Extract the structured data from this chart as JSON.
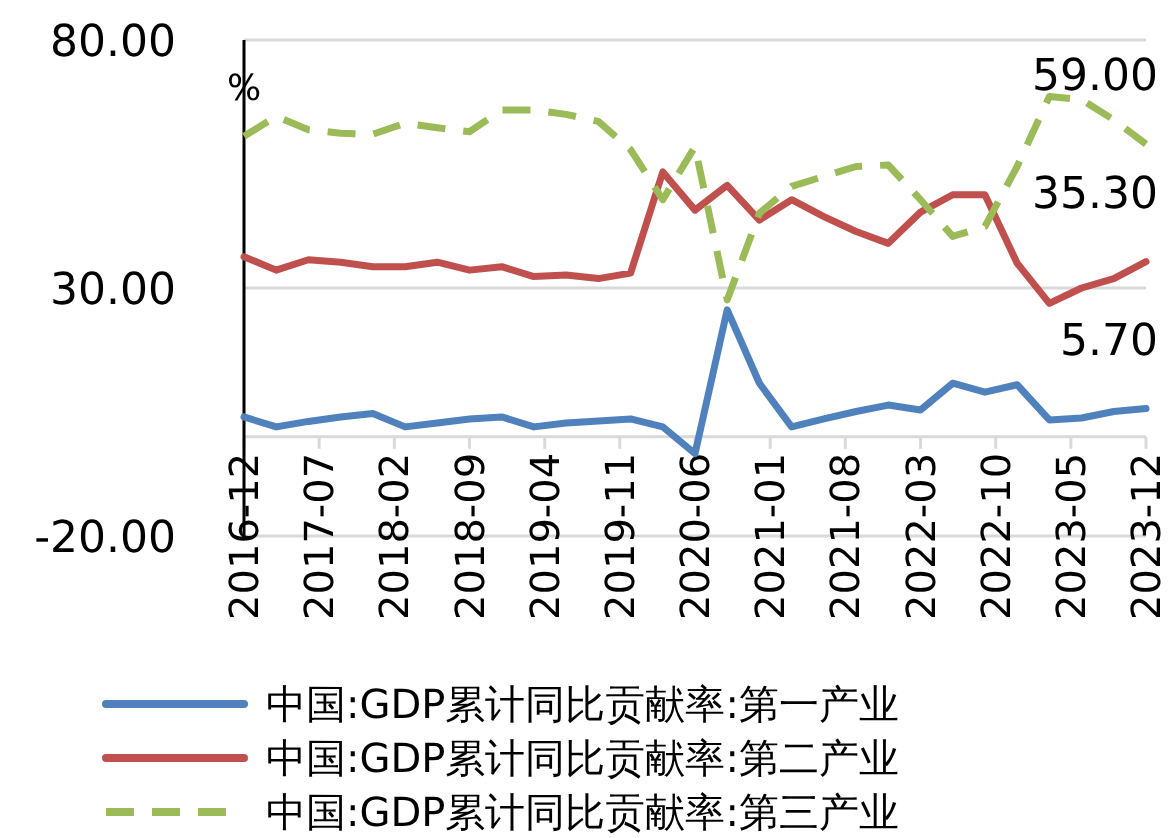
{
  "chart_data": {
    "type": "line",
    "ylabel": "%",
    "x": [
      "2016-12",
      "2017-03",
      "2017-06",
      "2017-09",
      "2017-12",
      "2018-03",
      "2018-06",
      "2018-09",
      "2018-12",
      "2019-03",
      "2019-06",
      "2019-09",
      "2019-12",
      "2020-03",
      "2020-06",
      "2020-09",
      "2020-12",
      "2021-03",
      "2021-06",
      "2021-09",
      "2021-12",
      "2022-03",
      "2022-06",
      "2022-09",
      "2022-12",
      "2023-03",
      "2023-06",
      "2023-09",
      "2023-12"
    ],
    "xlim": [
      "2016-12",
      "2023-12"
    ],
    "xticks": [
      {
        "value": "2016-12",
        "label": "2016-12"
      },
      {
        "value": "2017-07",
        "label": "2017-07"
      },
      {
        "value": "2018-02",
        "label": "2018-02"
      },
      {
        "value": "2018-09",
        "label": "2018-09"
      },
      {
        "value": "2019-04",
        "label": "2019-04"
      },
      {
        "value": "2019-11",
        "label": "2019-11"
      },
      {
        "value": "2020-06",
        "label": "2020-06"
      },
      {
        "value": "2021-01",
        "label": "2021-01"
      },
      {
        "value": "2021-08",
        "label": "2021-08"
      },
      {
        "value": "2022-03",
        "label": "2022-03"
      },
      {
        "value": "2022-10",
        "label": "2022-10"
      },
      {
        "value": "2023-05",
        "label": "2023-05"
      },
      {
        "value": "2023-12",
        "label": "2023-12"
      }
    ],
    "ylim": [
      -20,
      80
    ],
    "yticks": [
      {
        "value": -20,
        "label": "-20.00"
      },
      {
        "value": 30,
        "label": "30.00"
      },
      {
        "value": 80,
        "label": "80.00"
      }
    ],
    "grid": "y",
    "legend": "bottom",
    "series": [
      {
        "name": "中国:GDP累计同比贡献率:第一产业",
        "color": "#4f81bd",
        "line_style": "solid",
        "values": [
          4.0,
          2.0,
          3.1,
          4.0,
          4.7,
          2.0,
          2.8,
          3.6,
          4.0,
          2.0,
          2.8,
          3.2,
          3.6,
          2.0,
          -3.4,
          25.6,
          10.8,
          2.0,
          3.6,
          5.1,
          6.4,
          5.4,
          10.8,
          9.0,
          10.5,
          3.4,
          3.8,
          5.1,
          5.7
        ],
        "value_labels": [
          null,
          null,
          null,
          null,
          null,
          null,
          null,
          null,
          null,
          null,
          null,
          null,
          null,
          null,
          null,
          null,
          null,
          null,
          null,
          null,
          null,
          null,
          null,
          null,
          null,
          null,
          null,
          null,
          "5.70"
        ]
      },
      {
        "name": "中国:GDP累计同比贡献率:第二产业",
        "color": "#c0504d",
        "line_style": "solid",
        "values": [
          36.3,
          33.6,
          35.7,
          35.2,
          34.3,
          34.3,
          35.2,
          33.6,
          34.3,
          32.3,
          32.6,
          31.9,
          33.0,
          53.4,
          45.7,
          50.7,
          43.7,
          47.8,
          44.4,
          41.4,
          39.0,
          45.3,
          48.8,
          48.8,
          35.0,
          26.9,
          30.0,
          31.9,
          35.3
        ],
        "value_labels": [
          null,
          null,
          null,
          null,
          null,
          null,
          null,
          null,
          null,
          null,
          null,
          null,
          null,
          null,
          null,
          null,
          null,
          null,
          null,
          null,
          null,
          null,
          null,
          null,
          null,
          null,
          null,
          null,
          "35.30"
        ]
      },
      {
        "name": "中国:GDP累计同比贡献率:第三产业",
        "color": "#9bbb59",
        "line_style": "dashed",
        "values": [
          60.6,
          64.6,
          61.9,
          61.2,
          61.0,
          63.2,
          62.3,
          61.5,
          65.9,
          65.9,
          65.0,
          63.6,
          57.9,
          47.8,
          58.5,
          27.6,
          45.1,
          50.5,
          52.5,
          54.5,
          54.8,
          47.8,
          40.4,
          42.4,
          54.5,
          68.6,
          68.0,
          63.9,
          59.0
        ],
        "value_labels": [
          null,
          null,
          null,
          null,
          null,
          null,
          null,
          null,
          null,
          null,
          null,
          null,
          null,
          null,
          null,
          null,
          null,
          null,
          null,
          null,
          null,
          null,
          null,
          null,
          null,
          null,
          null,
          null,
          "59.00"
        ]
      }
    ]
  }
}
